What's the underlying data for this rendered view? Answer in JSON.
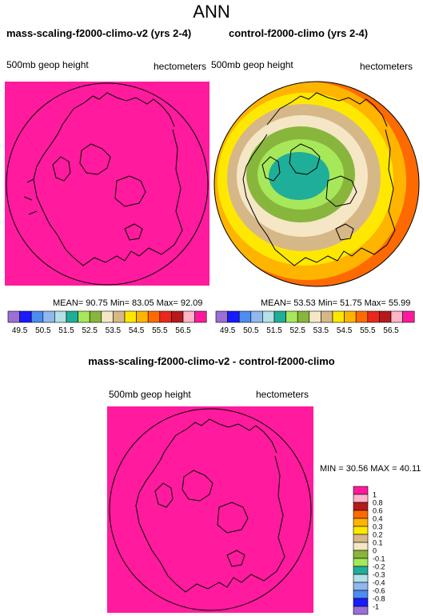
{
  "figure_title": "ANN",
  "panels": [
    {
      "title": "mass-scaling-f2000-climo-v2 (yrs 2-4)",
      "variable": "500mb geop height",
      "units": "hectometers",
      "stats_text": "MEAN=  90.75  Min=  83.05  Max=  92.09",
      "fill": "#ff1a9e"
    },
    {
      "title": "control-f2000-climo (yrs 2-4)",
      "variable": "500mb geop height",
      "units": "hectometers",
      "stats_text": "MEAN=  53.53  Min=  51.75  Max=  55.99"
    }
  ],
  "colorbar_top": {
    "labels": [
      "49.5",
      "50.5",
      "51.5",
      "52.5",
      "53.5",
      "54.5",
      "55.5",
      "56.5"
    ],
    "colors": [
      "#9b6fd6",
      "#1a1aff",
      "#4d8cf0",
      "#8fb8ef",
      "#b4e0e8",
      "#1fae99",
      "#a6e85a",
      "#88b63c",
      "#f5e6c6",
      "#d6b888",
      "#ffe800",
      "#ffb400",
      "#ff6a00",
      "#e8281c",
      "#b51a1a",
      "#ffb4c8",
      "#ff1a9e"
    ]
  },
  "difference": {
    "title": "mass-scaling-f2000-climo-v2 - control-f2000-climo",
    "variable": "500mb geop height",
    "units": "hectometers",
    "min_max_text": "MIN = 30.56 MAX = 40.11",
    "fill": "#ff1a9e",
    "colorbar": [
      {
        "label": "1",
        "color": "#ff1a9e"
      },
      {
        "label": "0.8",
        "color": "#ffb4c8"
      },
      {
        "label": "0.6",
        "color": "#b51a1a"
      },
      {
        "label": "0.4",
        "color": "#ff6a00"
      },
      {
        "label": "0.3",
        "color": "#ffb400"
      },
      {
        "label": "0.2",
        "color": "#ffe800"
      },
      {
        "label": "0.1",
        "color": "#d6b888"
      },
      {
        "label": "0",
        "color": "#f5e6c6"
      },
      {
        "label": "-0.1",
        "color": "#88b63c"
      },
      {
        "label": "-0.2",
        "color": "#a6e85a"
      },
      {
        "label": "-0.3",
        "color": "#1fae99"
      },
      {
        "label": "-0.4",
        "color": "#b4e0e8"
      },
      {
        "label": "-0.6",
        "color": "#8fb8ef"
      },
      {
        "label": "-0.8",
        "color": "#4d8cf0"
      },
      {
        "label": "-1",
        "color": "#1a1aff"
      },
      {
        "label": "",
        "color": "#9b6fd6"
      }
    ]
  }
}
